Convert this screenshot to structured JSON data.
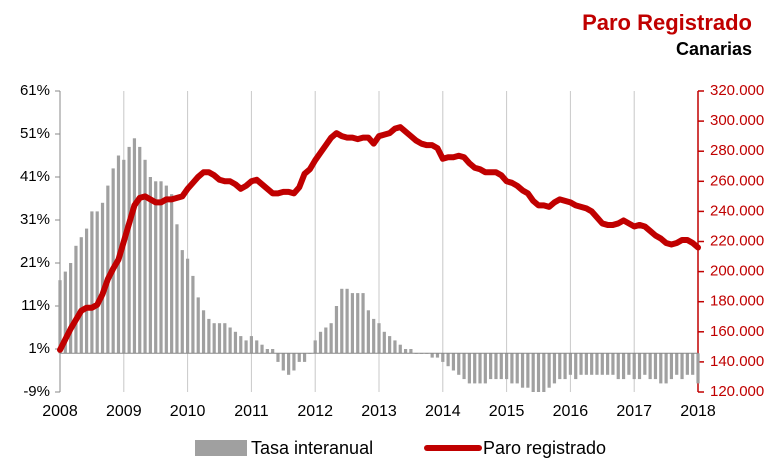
{
  "chart_data": {
    "type": "bar",
    "title": "Paro Registrado",
    "subtitle": "Canarias",
    "categories": [
      "2008",
      null,
      null,
      null,
      null,
      null,
      null,
      null,
      null,
      null,
      null,
      null,
      "2009",
      null,
      null,
      null,
      null,
      null,
      null,
      null,
      null,
      null,
      null,
      null,
      "2010",
      null,
      null,
      null,
      null,
      null,
      null,
      null,
      null,
      null,
      null,
      null,
      "2011",
      null,
      null,
      null,
      null,
      null,
      null,
      null,
      null,
      null,
      null,
      null,
      "2012",
      null,
      null,
      null,
      null,
      null,
      null,
      null,
      null,
      null,
      null,
      null,
      "2013",
      null,
      null,
      null,
      null,
      null,
      null,
      null,
      null,
      null,
      null,
      null,
      "2014",
      null,
      null,
      null,
      null,
      null,
      null,
      null,
      null,
      null,
      null,
      null,
      "2015",
      null,
      null,
      null,
      null,
      null,
      null,
      null,
      null,
      null,
      null,
      null,
      "2016",
      null,
      null,
      null,
      null,
      null,
      null,
      null,
      null,
      null,
      null,
      null,
      "2017",
      null,
      null,
      null,
      null,
      null,
      null,
      null,
      null,
      null,
      null,
      null,
      "2018"
    ],
    "series": [
      {
        "name": "Tasa interanual",
        "type": "bar",
        "color": "#a0a0a0",
        "values": [
          17,
          19,
          21,
          25,
          27,
          29,
          33,
          33,
          35,
          39,
          43,
          46,
          45,
          48,
          50,
          48,
          45,
          41,
          40,
          40,
          39,
          37,
          30,
          24,
          22,
          18,
          13,
          10,
          8,
          7,
          7,
          7,
          6,
          5,
          4,
          3,
          4,
          3,
          2,
          1,
          1,
          -2,
          -4,
          -5,
          -4,
          -2,
          -2,
          0,
          3,
          5,
          6,
          7,
          11,
          15,
          15,
          14,
          14,
          14,
          10,
          8,
          7,
          5,
          4,
          3,
          2,
          1,
          1,
          0,
          0,
          0,
          -1,
          -1,
          -2,
          -3,
          -4,
          -5,
          -6,
          -7,
          -7,
          -7,
          -7,
          -6,
          -6,
          -6,
          -6,
          -7,
          -7,
          -8,
          -8,
          -9,
          -9,
          -9,
          -8,
          -7,
          -6,
          -6,
          -5,
          -6,
          -5,
          -5,
          -5,
          -5,
          -5,
          -5,
          -5,
          -6,
          -6,
          -5,
          -6,
          -6,
          -5,
          -6,
          -6,
          -7,
          -7,
          -6,
          -5,
          -6,
          -5,
          -5,
          -7
        ]
      },
      {
        "name": "Paro registrado",
        "type": "line",
        "axis": "y2",
        "color": "#c00000",
        "values": [
          148000,
          155000,
          162000,
          168000,
          174000,
          176000,
          176000,
          178000,
          185000,
          195000,
          202000,
          208000,
          220000,
          232000,
          244000,
          249000,
          250000,
          248000,
          246000,
          246000,
          248000,
          248000,
          249000,
          250000,
          255000,
          259000,
          263000,
          266000,
          266000,
          264000,
          261000,
          260000,
          260000,
          258000,
          255000,
          257000,
          260000,
          261000,
          258000,
          255000,
          252000,
          252000,
          253000,
          253000,
          252000,
          256000,
          265000,
          268000,
          274000,
          279000,
          284000,
          289000,
          292000,
          290000,
          289000,
          289000,
          288000,
          289000,
          289000,
          285000,
          290000,
          291000,
          292000,
          295000,
          296000,
          293000,
          290000,
          287000,
          285000,
          284000,
          284000,
          282000,
          275000,
          276000,
          276000,
          277000,
          276000,
          272000,
          269000,
          268000,
          266000,
          266000,
          266000,
          264000,
          260000,
          259000,
          257000,
          254000,
          252000,
          247000,
          244000,
          244000,
          243000,
          246000,
          248000,
          247000,
          246000,
          244000,
          243000,
          242000,
          240000,
          236000,
          232000,
          231000,
          231000,
          232000,
          234000,
          232000,
          230000,
          231000,
          230000,
          227000,
          224000,
          222000,
          219000,
          218000,
          219000,
          221000,
          221000,
          219000,
          216000
        ]
      }
    ],
    "ylim": [
      -9,
      61
    ],
    "yticks": [
      {
        "value": -9,
        "label": "-9%"
      },
      {
        "value": 1,
        "label": "1%"
      },
      {
        "value": 11,
        "label": "11%"
      },
      {
        "value": 21,
        "label": "21%"
      },
      {
        "value": 31,
        "label": "31%"
      },
      {
        "value": 41,
        "label": "41%"
      },
      {
        "value": 51,
        "label": "51%"
      },
      {
        "value": 61,
        "label": "61%"
      }
    ],
    "y2lim": [
      120000,
      320000
    ],
    "y2ticks": [
      {
        "value": 120000,
        "label": "120.000"
      },
      {
        "value": 140000,
        "label": "140.000"
      },
      {
        "value": 160000,
        "label": "160.000"
      },
      {
        "value": 180000,
        "label": "180.000"
      },
      {
        "value": 200000,
        "label": "200.000"
      },
      {
        "value": 220000,
        "label": "220.000"
      },
      {
        "value": 240000,
        "label": "240.000"
      },
      {
        "value": 260000,
        "label": "260.000"
      },
      {
        "value": 280000,
        "label": "280.000"
      },
      {
        "value": 300000,
        "label": "300.000"
      },
      {
        "value": 320000,
        "label": "320.000"
      }
    ],
    "grid": true,
    "legend": "bottom"
  }
}
